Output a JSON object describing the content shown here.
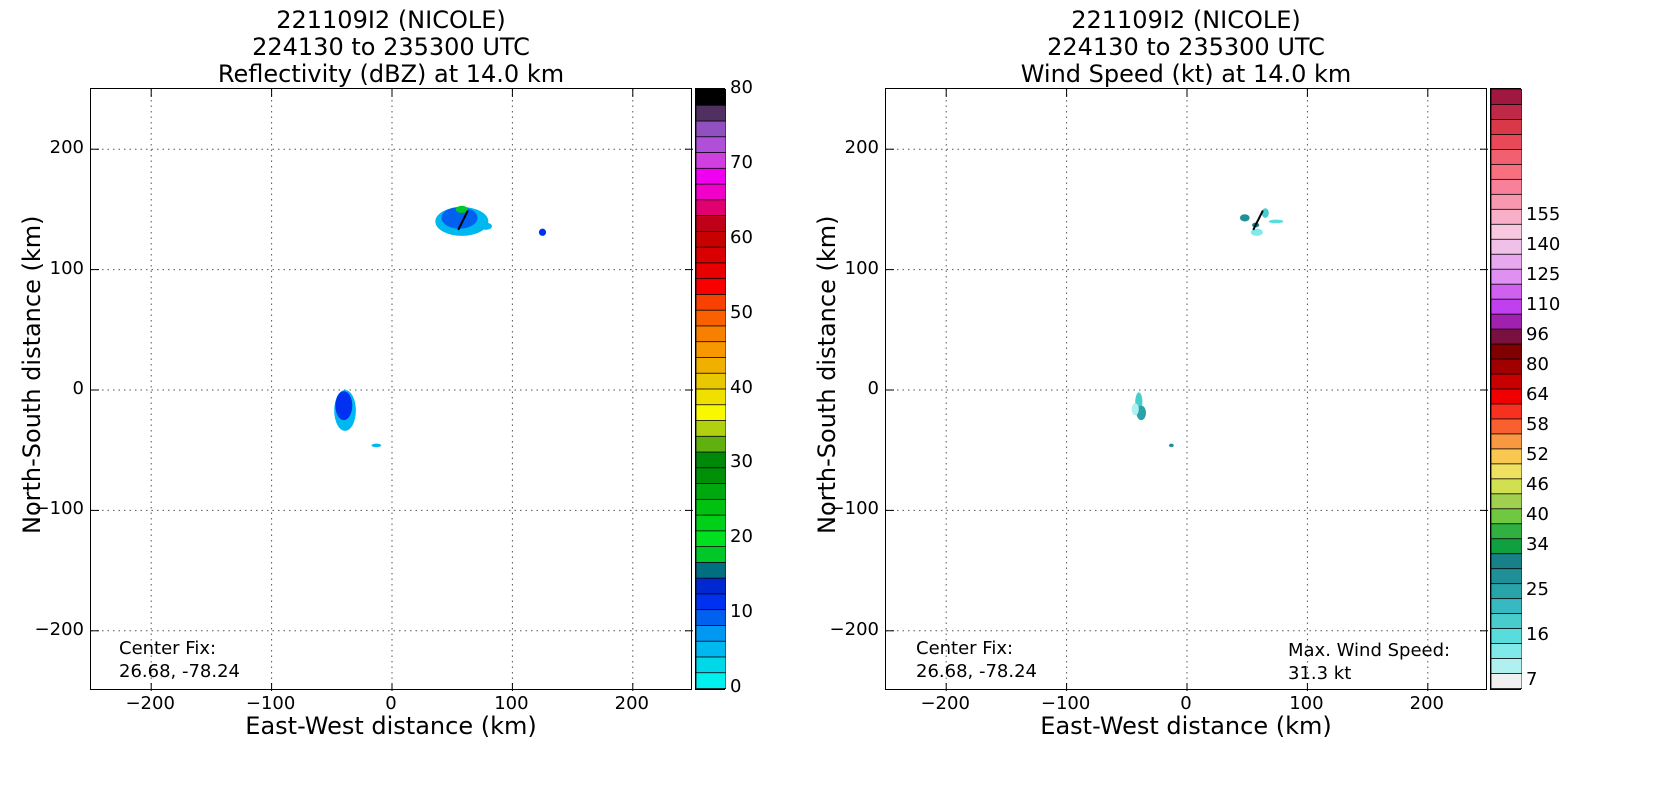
{
  "chart_data": [
    {
      "type": "heatmap",
      "title_lines": [
        "221109I2 (NICOLE)",
        "224130 to 235300 UTC",
        "Reflectivity (dBZ) at 14.0 km"
      ],
      "xlabel": "East-West distance (km)",
      "ylabel": "North-South distance (km)",
      "xlim": [
        -250,
        250
      ],
      "ylim": [
        -250,
        250
      ],
      "xticks": [
        -200,
        -100,
        0,
        100,
        200
      ],
      "yticks": [
        -200,
        -100,
        0,
        100,
        200
      ],
      "xtick_labels": [
        "−200",
        "−100",
        "0",
        "100",
        "200"
      ],
      "ytick_labels": [
        "−200",
        "−100",
        "0",
        "100",
        "200"
      ],
      "grid": true,
      "annotation": [
        "Center Fix:",
        "26.68, -78.24"
      ],
      "annotation_position": "bottom-left",
      "colorbar": {
        "min": 0,
        "max": 80,
        "tick_values": [
          0,
          10,
          20,
          30,
          40,
          50,
          60,
          70,
          80
        ],
        "tick_labels": [
          "0",
          "10",
          "20",
          "30",
          "40",
          "50",
          "60",
          "70",
          "80"
        ],
        "colors": [
          "#00f0f0",
          "#00d8e8",
          "#00b8f0",
          "#0098f0",
          "#0060f0",
          "#0030f0",
          "#0028d0",
          "#007080",
          "#00c828",
          "#00e020",
          "#00d018",
          "#00c010",
          "#00a810",
          "#009008",
          "#008808",
          "#60b010",
          "#b0d010",
          "#f8f800",
          "#f0e000",
          "#e8c800",
          "#f0b000",
          "#f89800",
          "#f88000",
          "#f86000",
          "#f84000",
          "#f80000",
          "#e80000",
          "#d80000",
          "#c80000",
          "#c00018",
          "#e00070",
          "#f000c8",
          "#f000f0",
          "#d040e0",
          "#b050d8",
          "#9050c0",
          "#503060",
          "#000000"
        ]
      },
      "echoes": [
        {
          "x": 58,
          "y": 140,
          "rx": 22,
          "ry": 12,
          "color": "#00b8f0"
        },
        {
          "x": 56,
          "y": 143,
          "rx": 15,
          "ry": 9,
          "color": "#0060f0"
        },
        {
          "x": 58,
          "y": 150,
          "rx": 5,
          "ry": 3,
          "color": "#00c828"
        },
        {
          "x": 78,
          "y": 136,
          "rx": 5,
          "ry": 3,
          "color": "#00b8f0"
        },
        {
          "x": 125,
          "y": 131,
          "rx": 3,
          "ry": 3,
          "color": "#0030f0"
        },
        {
          "x": -39,
          "y": -17,
          "rx": 9,
          "ry": 17,
          "color": "#00b8f0"
        },
        {
          "x": -40,
          "y": -13,
          "rx": 7,
          "ry": 12,
          "color": "#0030f0"
        },
        {
          "x": -13,
          "y": -46,
          "rx": 4,
          "ry": 1.5,
          "color": "#00b8f0"
        }
      ],
      "motion_vector": {
        "x1": 55,
        "y1": 133,
        "x2": 63,
        "y2": 149
      }
    },
    {
      "type": "heatmap",
      "title_lines": [
        "221109I2 (NICOLE)",
        "224130 to 235300 UTC",
        "Wind Speed (kt) at 14.0 km"
      ],
      "xlabel": "East-West distance (km)",
      "ylabel": "North-South distance (km)",
      "xlim": [
        -250,
        250
      ],
      "ylim": [
        -250,
        250
      ],
      "xticks": [
        -200,
        -100,
        0,
        100,
        200
      ],
      "yticks": [
        -200,
        -100,
        0,
        100,
        200
      ],
      "xtick_labels": [
        "−200",
        "−100",
        "0",
        "100",
        "200"
      ],
      "ytick_labels": [
        "−200",
        "−100",
        "0",
        "100",
        "200"
      ],
      "grid": true,
      "annotation": [
        "Center Fix:",
        "26.68, -78.24"
      ],
      "annotation_position": "bottom-left",
      "annotation2": [
        "Max. Wind Speed:",
        "31.3 kt"
      ],
      "annotation2_position": "bottom-right",
      "colorbar": {
        "tick_labels": [
          "7",
          "16",
          "25",
          "34",
          "40",
          "46",
          "52",
          "58",
          "64",
          "80",
          "96",
          "110",
          "125",
          "140",
          "155"
        ],
        "tick_bins": [
          0,
          3,
          6,
          9,
          11,
          13,
          15,
          17,
          19,
          21,
          23,
          25,
          27,
          29,
          31
        ],
        "colors": [
          "#f0f0f0",
          "#b0f0f0",
          "#80eaea",
          "#58dcdc",
          "#48cccc",
          "#38b8c0",
          "#28a4a8",
          "#209098",
          "#188088",
          "#10a040",
          "#30b040",
          "#70c840",
          "#a0d050",
          "#d0e050",
          "#f0e060",
          "#f8c850",
          "#f89840",
          "#f86030",
          "#f83020",
          "#f00000",
          "#c80000",
          "#a00000",
          "#800000",
          "#781040",
          "#a020b0",
          "#c040f0",
          "#d060f0",
          "#e090f0",
          "#e8a8f0",
          "#f0c0e8",
          "#f8c8e0",
          "#f8b0c8",
          "#f898b0",
          "#f88098",
          "#f87080",
          "#f06070",
          "#e84858",
          "#d83848",
          "#c02848",
          "#a01840"
        ]
      },
      "echoes": [
        {
          "x": 48,
          "y": 143,
          "rx": 4,
          "ry": 3,
          "color": "#209098"
        },
        {
          "x": 58,
          "y": 131,
          "rx": 5,
          "ry": 3,
          "color": "#80eaea"
        },
        {
          "x": 65,
          "y": 147,
          "rx": 3,
          "ry": 4,
          "color": "#48cccc"
        },
        {
          "x": 74,
          "y": 140,
          "rx": 6,
          "ry": 1.5,
          "color": "#58dcdc"
        },
        {
          "x": 57,
          "y": 137,
          "rx": 3,
          "ry": 2,
          "color": "#188088"
        },
        {
          "x": -40,
          "y": -10,
          "rx": 3,
          "ry": 8,
          "color": "#48cccc"
        },
        {
          "x": -38,
          "y": -19,
          "rx": 4,
          "ry": 6,
          "color": "#28a4a8"
        },
        {
          "x": -43,
          "y": -16,
          "rx": 3,
          "ry": 5,
          "color": "#b0f0f0"
        },
        {
          "x": -13,
          "y": -46,
          "rx": 2,
          "ry": 1.5,
          "color": "#209098"
        }
      ],
      "motion_vector": {
        "x1": 55,
        "y1": 133,
        "x2": 63,
        "y2": 149
      }
    }
  ]
}
